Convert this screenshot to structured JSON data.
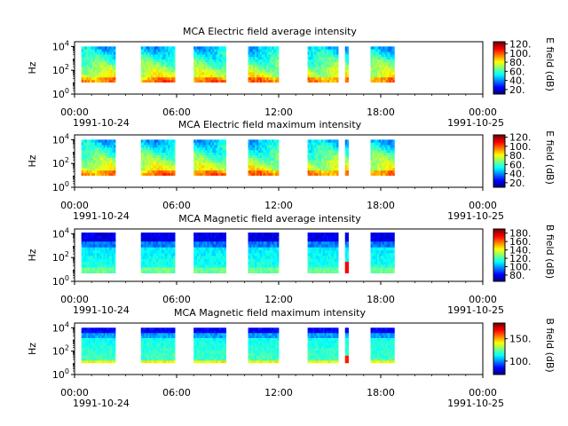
{
  "chart_data": [
    {
      "type": "heatmap",
      "title": "MCA  Electric field average intensity",
      "ylabel": "Hz",
      "colorbar_label": "E field (dB)",
      "colorbar_ticks": [
        "120.",
        "100.",
        "80.",
        "60.",
        "40.",
        "20."
      ],
      "colorbar_ticks_values": [
        120,
        100,
        80,
        60,
        40,
        20
      ],
      "colorbar_range": [
        10,
        125
      ],
      "yticks": [
        "10",
        "10",
        "10"
      ],
      "yticks_exp": [
        "0",
        "2",
        "4"
      ],
      "yticks_values": [
        0,
        2,
        4
      ],
      "xticks": [
        "00:00",
        "06:00",
        "12:00",
        "18:00",
        "00:00"
      ],
      "xticks_hours": [
        0,
        6,
        12,
        18,
        24
      ],
      "date_start": "1991-10-24",
      "date_end": "1991-10-25",
      "data_windows_hours": [
        [
          0.4,
          2.4
        ],
        [
          3.9,
          5.9
        ],
        [
          7.0,
          8.9
        ],
        [
          10.2,
          12.0
        ],
        [
          13.7,
          15.5
        ],
        [
          15.9,
          16.1
        ],
        [
          17.4,
          18.8
        ]
      ],
      "scheme": "electric",
      "freq_range_log10": [
        1.0,
        4.0
      ]
    },
    {
      "type": "heatmap",
      "title": "MCA  Electric field maximum intensity",
      "ylabel": "Hz",
      "colorbar_label": "E field (dB)",
      "colorbar_ticks": [
        "120.",
        "100.",
        "80.",
        "60.",
        "40.",
        "20."
      ],
      "colorbar_ticks_values": [
        120,
        100,
        80,
        60,
        40,
        20
      ],
      "colorbar_range": [
        10,
        125
      ],
      "yticks": [
        "10",
        "10",
        "10"
      ],
      "yticks_exp": [
        "0",
        "2",
        "4"
      ],
      "yticks_values": [
        0,
        2,
        4
      ],
      "xticks": [
        "00:00",
        "06:00",
        "12:00",
        "18:00",
        "00:00"
      ],
      "xticks_hours": [
        0,
        6,
        12,
        18,
        24
      ],
      "date_start": "1991-10-24",
      "date_end": "1991-10-25",
      "data_windows_hours": [
        [
          0.4,
          2.4
        ],
        [
          3.9,
          5.9
        ],
        [
          7.0,
          8.9
        ],
        [
          10.2,
          12.0
        ],
        [
          13.7,
          15.5
        ],
        [
          15.9,
          16.1
        ],
        [
          17.4,
          18.8
        ]
      ],
      "scheme": "electric",
      "freq_range_log10": [
        1.0,
        4.0
      ]
    },
    {
      "type": "heatmap",
      "title": "MCA  Magnetic field average intensity",
      "ylabel": "Hz",
      "colorbar_label": "B field (dB)",
      "colorbar_ticks": [
        "180.",
        "160.",
        "140.",
        "120.",
        "100.",
        "80."
      ],
      "colorbar_ticks_values": [
        180,
        160,
        140,
        120,
        100,
        80
      ],
      "colorbar_range": [
        65,
        190
      ],
      "yticks": [
        "10",
        "10",
        "10"
      ],
      "yticks_exp": [
        "0",
        "2",
        "4"
      ],
      "yticks_values": [
        0,
        2,
        4
      ],
      "xticks": [
        "00:00",
        "06:00",
        "12:00",
        "18:00",
        "00:00"
      ],
      "xticks_hours": [
        0,
        6,
        12,
        18,
        24
      ],
      "date_start": "1991-10-24",
      "date_end": "1991-10-25",
      "data_windows_hours": [
        [
          0.4,
          2.4
        ],
        [
          3.9,
          5.9
        ],
        [
          7.0,
          8.9
        ],
        [
          10.2,
          12.0
        ],
        [
          13.7,
          15.5
        ],
        [
          15.9,
          16.1
        ],
        [
          17.4,
          18.8
        ]
      ],
      "scheme": "magnetic",
      "freq_range_log10": [
        0.7,
        4.1
      ]
    },
    {
      "type": "heatmap",
      "title": "MCA  Magnetic field maximum intensity",
      "ylabel": "Hz",
      "colorbar_label": "B field (dB)",
      "colorbar_ticks": [
        "150.",
        "100."
      ],
      "colorbar_ticks_values": [
        150,
        100
      ],
      "colorbar_range": [
        70,
        185
      ],
      "yticks": [
        "10",
        "10",
        "10"
      ],
      "yticks_exp": [
        "0",
        "2",
        "4"
      ],
      "yticks_values": [
        0,
        2,
        4
      ],
      "xticks": [
        "00:00",
        "06:00",
        "12:00",
        "18:00",
        "00:00"
      ],
      "xticks_hours": [
        0,
        6,
        12,
        18,
        24
      ],
      "date_start": "1991-10-24",
      "date_end": "1991-10-25",
      "data_windows_hours": [
        [
          0.4,
          2.4
        ],
        [
          3.9,
          5.9
        ],
        [
          7.0,
          8.9
        ],
        [
          10.2,
          12.0
        ],
        [
          13.7,
          15.5
        ],
        [
          15.9,
          16.1
        ],
        [
          17.4,
          18.8
        ]
      ],
      "scheme": "magnetic_max",
      "freq_range_log10": [
        1.0,
        4.0
      ]
    }
  ]
}
